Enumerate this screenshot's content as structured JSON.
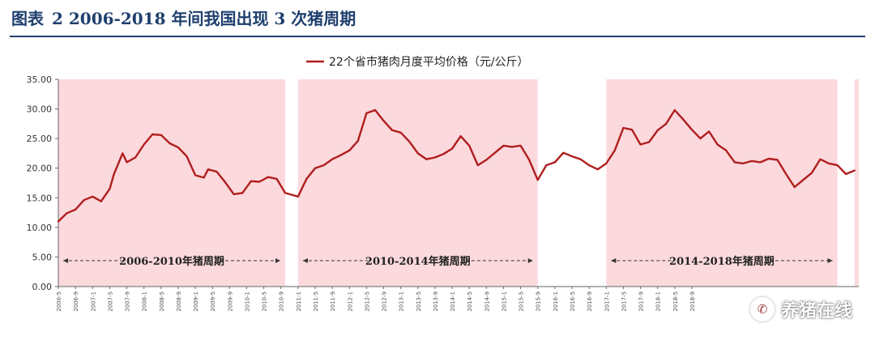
{
  "header": {
    "tag": "图表",
    "title": "2 2006-2018 年间我国出现 3 次猪周期"
  },
  "watermark": {
    "icon": "wechat-icon",
    "text": "养猪在线"
  },
  "colors": {
    "line": "#b01e1e",
    "band": "#fbd9dd",
    "title": "#1f3f6e",
    "axis": "#666666"
  },
  "chart_data": {
    "type": "line",
    "title": "",
    "xlabel": "",
    "ylabel": "",
    "ylim": [
      0,
      35
    ],
    "yticks": [
      "0.00",
      "5.00",
      "10.00",
      "15.00",
      "20.00",
      "25.00",
      "30.00",
      "35.00"
    ],
    "grid": false,
    "legend_position": "top-center",
    "x_ticks": [
      "2006-5",
      "2006-9",
      "2007-1",
      "2007-5",
      "2007-9",
      "2008-1",
      "2008-5",
      "2008-9",
      "2009-1",
      "2009-5",
      "2009-9",
      "2010-1",
      "2010-5",
      "2010-9",
      "2011-1",
      "2011-5",
      "2011-9",
      "2012-1",
      "2012-5",
      "2012-9",
      "2013-1",
      "2013-5",
      "2013-9",
      "2014-1",
      "2014-5",
      "2014-9",
      "2015-1",
      "2015-5",
      "2015-9",
      "2016-1",
      "2016-5",
      "2016-9",
      "2017-1",
      "2017-5",
      "2017-9",
      "2018-1",
      "2018-5",
      "2018-9"
    ],
    "series": [
      {
        "name": "22个省市猪肉月度平均价格（元/公斤）",
        "values": [
          {
            "x": "2006-5",
            "y": 11.0
          },
          {
            "x": "2006-7",
            "y": 12.4
          },
          {
            "x": "2006-9",
            "y": 13.0
          },
          {
            "x": "2006-11",
            "y": 14.6
          },
          {
            "x": "2007-1",
            "y": 15.2
          },
          {
            "x": "2007-3",
            "y": 14.4
          },
          {
            "x": "2007-5",
            "y": 16.5
          },
          {
            "x": "2007-6",
            "y": 19.0
          },
          {
            "x": "2007-8",
            "y": 22.5
          },
          {
            "x": "2007-9",
            "y": 21.0
          },
          {
            "x": "2007-11",
            "y": 21.8
          },
          {
            "x": "2008-1",
            "y": 24.0
          },
          {
            "x": "2008-3",
            "y": 25.7
          },
          {
            "x": "2008-5",
            "y": 25.6
          },
          {
            "x": "2008-7",
            "y": 24.2
          },
          {
            "x": "2008-9",
            "y": 23.5
          },
          {
            "x": "2008-11",
            "y": 22.0
          },
          {
            "x": "2009-1",
            "y": 18.8
          },
          {
            "x": "2009-3",
            "y": 18.4
          },
          {
            "x": "2009-4",
            "y": 19.8
          },
          {
            "x": "2009-6",
            "y": 19.4
          },
          {
            "x": "2009-8",
            "y": 17.6
          },
          {
            "x": "2009-10",
            "y": 15.6
          },
          {
            "x": "2009-12",
            "y": 15.8
          },
          {
            "x": "2010-2",
            "y": 17.8
          },
          {
            "x": "2010-4",
            "y": 17.7
          },
          {
            "x": "2010-6",
            "y": 18.5
          },
          {
            "x": "2010-8",
            "y": 18.2
          },
          {
            "x": "2010-10",
            "y": 15.8
          },
          {
            "x": "2011-1",
            "y": 15.2
          },
          {
            "x": "2011-3",
            "y": 18.2
          },
          {
            "x": "2011-5",
            "y": 20.0
          },
          {
            "x": "2011-7",
            "y": 20.5
          },
          {
            "x": "2011-9",
            "y": 21.5
          },
          {
            "x": "2011-11",
            "y": 22.2
          },
          {
            "x": "2012-1",
            "y": 23.0
          },
          {
            "x": "2012-3",
            "y": 24.6
          },
          {
            "x": "2012-5",
            "y": 29.3
          },
          {
            "x": "2012-7",
            "y": 29.8
          },
          {
            "x": "2012-9",
            "y": 28.0
          },
          {
            "x": "2012-11",
            "y": 26.4
          },
          {
            "x": "2013-1",
            "y": 26.0
          },
          {
            "x": "2013-3",
            "y": 24.5
          },
          {
            "x": "2013-5",
            "y": 22.5
          },
          {
            "x": "2013-7",
            "y": 21.5
          },
          {
            "x": "2013-9",
            "y": 21.8
          },
          {
            "x": "2013-11",
            "y": 22.4
          },
          {
            "x": "2014-1",
            "y": 23.3
          },
          {
            "x": "2014-3",
            "y": 25.4
          },
          {
            "x": "2014-5",
            "y": 23.8
          },
          {
            "x": "2014-7",
            "y": 20.5
          },
          {
            "x": "2014-9",
            "y": 21.4
          },
          {
            "x": "2014-11",
            "y": 22.6
          },
          {
            "x": "2015-1",
            "y": 23.8
          },
          {
            "x": "2015-3",
            "y": 23.6
          },
          {
            "x": "2015-5",
            "y": 23.8
          },
          {
            "x": "2015-7",
            "y": 21.4
          },
          {
            "x": "2015-9",
            "y": 18.0
          },
          {
            "x": "2015-11",
            "y": 20.5
          },
          {
            "x": "2016-1",
            "y": 21.0
          },
          {
            "x": "2016-3",
            "y": 22.6
          },
          {
            "x": "2016-5",
            "y": 22.0
          },
          {
            "x": "2016-7",
            "y": 21.5
          },
          {
            "x": "2016-9",
            "y": 20.5
          },
          {
            "x": "2016-11",
            "y": 19.8
          },
          {
            "x": "2017-1",
            "y": 20.8
          },
          {
            "x": "2017-3",
            "y": 23.0
          },
          {
            "x": "2017-5",
            "y": 26.8
          },
          {
            "x": "2017-7",
            "y": 26.5
          },
          {
            "x": "2017-9",
            "y": 24.0
          },
          {
            "x": "2017-11",
            "y": 24.4
          },
          {
            "x": "2018-1",
            "y": 26.4
          },
          {
            "x": "2018-3",
            "y": 27.5
          },
          {
            "x": "2018-5",
            "y": 29.8
          },
          {
            "x": "2018-7",
            "y": 28.2
          },
          {
            "x": "2018-9",
            "y": 26.5
          },
          {
            "x": "2018-11",
            "y": 25.0
          },
          {
            "x": "2019-1",
            "y": 26.2
          },
          {
            "x": "2019-3",
            "y": 24.0
          },
          {
            "x": "2019-5",
            "y": 23.0
          },
          {
            "x": "2019-7",
            "y": 21.0
          },
          {
            "x": "2019-9",
            "y": 20.8
          },
          {
            "x": "2019-11",
            "y": 21.2
          },
          {
            "x": "2020-1",
            "y": 21.0
          },
          {
            "x": "2020-3",
            "y": 21.6
          },
          {
            "x": "2020-5",
            "y": 21.4
          },
          {
            "x": "2020-7",
            "y": 19.0
          },
          {
            "x": "2020-9",
            "y": 16.8
          },
          {
            "x": "2020-11",
            "y": 18.0
          },
          {
            "x": "2021-1",
            "y": 19.2
          },
          {
            "x": "2021-3",
            "y": 21.5
          },
          {
            "x": "2021-5",
            "y": 20.8
          },
          {
            "x": "2021-7",
            "y": 20.5
          },
          {
            "x": "2021-9",
            "y": 19.0
          },
          {
            "x": "2021-11",
            "y": 19.6
          }
        ]
      }
    ],
    "bands": [
      {
        "label": "2006-2010年猪周期",
        "start": "2006-5",
        "end": "2010-10"
      },
      {
        "label": "2010-2014年猪周期",
        "start": "2011-1",
        "end": "2015-9"
      },
      {
        "label": "2014-2018年猪周期",
        "start": "2017-1",
        "end": "2021-7"
      },
      {
        "label": "",
        "start": "2021-11",
        "end": "2021-12"
      }
    ]
  }
}
